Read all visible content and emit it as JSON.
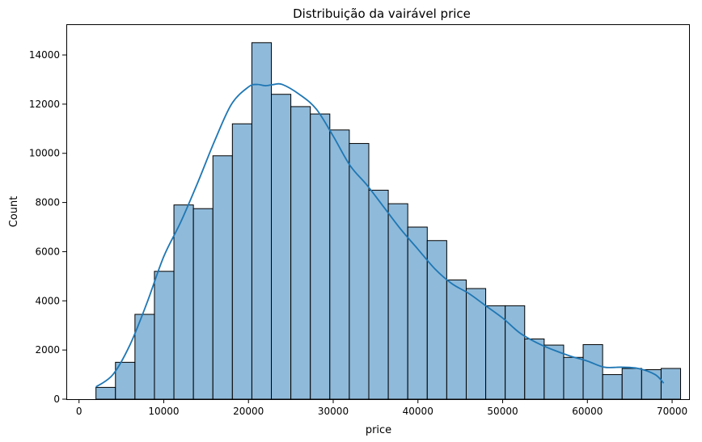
{
  "chart_data": {
    "type": "bar",
    "title": "Distribuição da vairável price",
    "xlabel": "price",
    "ylabel": "Count",
    "xlim": [
      -1500,
      72000
    ],
    "ylim": [
      0,
      15250
    ],
    "grid": false,
    "legend": "none",
    "xticks": [
      0,
      10000,
      20000,
      30000,
      40000,
      50000,
      60000,
      70000
    ],
    "yticks": [
      0,
      2000,
      4000,
      6000,
      8000,
      10000,
      12000,
      14000
    ],
    "bins": {
      "start": 2000,
      "width": 2300,
      "counts": [
        480,
        1500,
        3450,
        5200,
        7900,
        7750,
        9900,
        11200,
        14500,
        12400,
        11900,
        11600,
        10950,
        10400,
        8500,
        7950,
        7000,
        6450,
        4850,
        4500,
        3800,
        3800,
        2450,
        2200,
        1700,
        2220,
        1000,
        1250,
        1200,
        1250
      ]
    },
    "kde": {
      "x": [
        2000,
        4000,
        6000,
        8000,
        10000,
        12000,
        14000,
        16000,
        18000,
        20000,
        21000,
        22000,
        23000,
        24000,
        26000,
        28000,
        30000,
        32000,
        34000,
        36000,
        38000,
        40000,
        42000,
        44000,
        46000,
        48000,
        50000,
        52000,
        54000,
        56000,
        58000,
        60000,
        62000,
        64000,
        66000,
        68000,
        69000
      ],
      "y": [
        500,
        1000,
        2200,
        3900,
        5800,
        7200,
        8800,
        10500,
        12000,
        12700,
        12800,
        12750,
        12800,
        12800,
        12400,
        11800,
        10700,
        9500,
        8700,
        7800,
        6900,
        6100,
        5300,
        4700,
        4300,
        3800,
        3300,
        2700,
        2300,
        2000,
        1750,
        1550,
        1300,
        1300,
        1250,
        1000,
        650
      ],
      "color": "#1f77b4"
    },
    "bar_color": "#7fb0d5",
    "edge_color": "#000000"
  }
}
